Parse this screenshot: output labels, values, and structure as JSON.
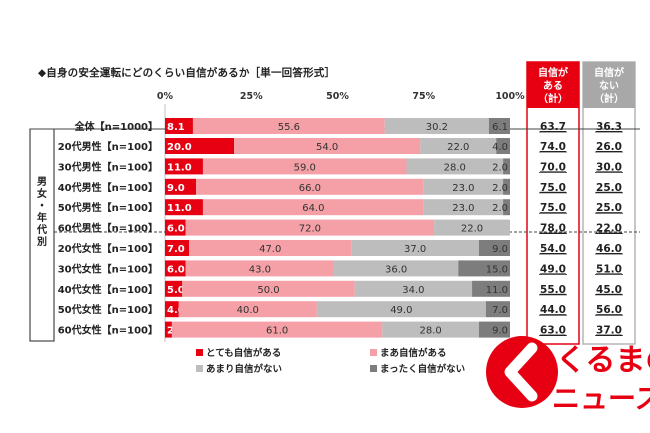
{
  "title": "◆自身の安全運転にどのくらい自信があるか［単一回答形式］",
  "group_label": "男女・年代別",
  "summary_headers": [
    "自信がある（計）",
    "自信がない（計）"
  ],
  "axis_ticks": [
    "0%",
    "25%",
    "50%",
    "75%",
    "100%"
  ],
  "colors": {
    "very_confident": "#e60012",
    "somewhat_confident": "#f4a0a6",
    "not_very": "#bdbdbd",
    "not_at_all": "#7d7d7d",
    "summary_border": "#e60012",
    "summary_border_no": "#b5b5b5",
    "logo": "#e60012"
  },
  "logo": {
    "line1": "くるまの",
    "line2": "ニュース"
  },
  "chart_data": {
    "type": "bar",
    "orientation": "horizontal",
    "stacked": true,
    "xlim": [
      0,
      100
    ],
    "legend_position": "bottom",
    "categories": [
      "全体【n=1000】",
      "20代男性【n=100】",
      "30代男性【n=100】",
      "40代男性【n=100】",
      "50代男性【n=100】",
      "60代男性【n=100】",
      "20代女性【n=100】",
      "30代女性【n=100】",
      "40代女性【n=100】",
      "50代女性【n=100】",
      "60代女性【n=100】"
    ],
    "series": [
      {
        "name": "とても自信がある",
        "values": [
          8.1,
          20.0,
          11.0,
          9.0,
          11.0,
          6.0,
          7.0,
          6.0,
          5.0,
          4.0,
          2.0
        ],
        "labels": [
          "8.1",
          "20.0",
          "11.0",
          "9.0",
          "11.0",
          "6.0",
          "7.0",
          "6.0",
          "5.0",
          "4.0",
          "2.0"
        ]
      },
      {
        "name": "まあ自信がある",
        "values": [
          55.6,
          54.0,
          59.0,
          66.0,
          64.0,
          72.0,
          47.0,
          43.0,
          50.0,
          40.0,
          61.0
        ],
        "labels": [
          "55.6",
          "54.0",
          "59.0",
          "66.0",
          "64.0",
          "72.0",
          "47.0",
          "43.0",
          "50.0",
          "40.0",
          "61.0"
        ]
      },
      {
        "name": "あまり自信がない",
        "values": [
          30.2,
          22.0,
          28.0,
          23.0,
          23.0,
          22.0,
          37.0,
          36.0,
          34.0,
          49.0,
          28.0
        ],
        "labels": [
          "30.2",
          "22.0",
          "28.0",
          "23.0",
          "23.0",
          "22.0",
          "37.0",
          "36.0",
          "34.0",
          "49.0",
          "28.0"
        ]
      },
      {
        "name": "まったく自信がない",
        "values": [
          6.1,
          4.0,
          2.0,
          2.0,
          2.0,
          0.0,
          9.0,
          15.0,
          11.0,
          7.0,
          9.0
        ],
        "labels": [
          "6.1",
          "4.0",
          "2.0",
          "2.0",
          "2.0",
          "",
          "9.0",
          "15.0",
          "11.0",
          "7.0",
          "9.0"
        ]
      }
    ],
    "totals_confident": [
      "63.7",
      "74.0",
      "70.0",
      "75.0",
      "75.0",
      "78.0",
      "54.0",
      "49.0",
      "55.0",
      "44.0",
      "63.0"
    ],
    "totals_not_confident": [
      "36.3",
      "26.0",
      "30.0",
      "25.0",
      "25.0",
      "22.0",
      "46.0",
      "51.0",
      "45.0",
      "56.0",
      "37.0"
    ]
  }
}
